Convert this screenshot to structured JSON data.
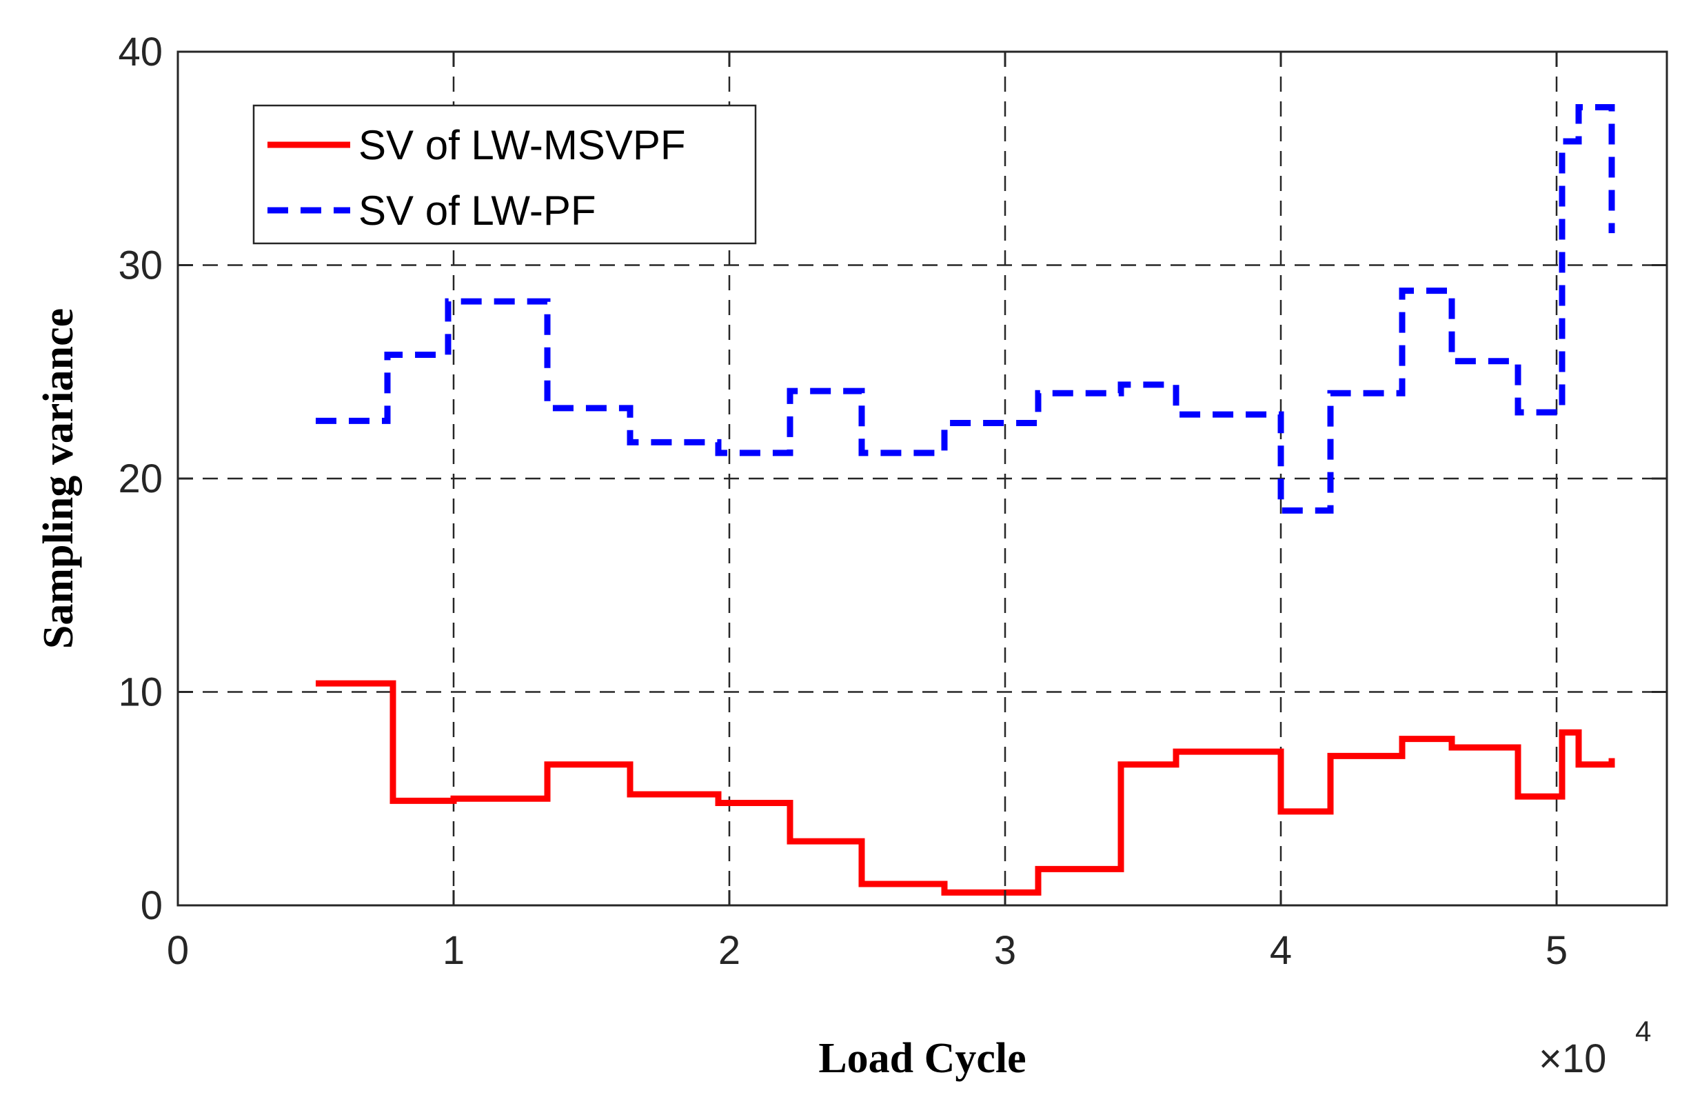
{
  "chart_data": {
    "type": "line",
    "title": "",
    "xlabel": "Load Cycle",
    "ylabel": "Sampling variance",
    "x_multiplier_label": "×10",
    "x_multiplier_exponent": "4",
    "xlim": [
      0,
      5.4
    ],
    "ylim": [
      0,
      40
    ],
    "x_ticks": [
      0,
      1,
      2,
      3,
      4,
      5
    ],
    "y_ticks": [
      0,
      10,
      20,
      30,
      40
    ],
    "x_tick_labels": [
      "0",
      "1",
      "2",
      "3",
      "4",
      "5"
    ],
    "y_tick_labels": [
      "0",
      "10",
      "20",
      "30",
      "40"
    ],
    "grid": true,
    "legend_position": "top-left",
    "series": [
      {
        "name": "SV of LW-MSVPF",
        "color": "#ff0000",
        "style": "solid",
        "step": true,
        "x": [
          0.5,
          0.78,
          1.0,
          1.34,
          1.64,
          1.96,
          2.22,
          2.48,
          2.78,
          3.12,
          3.42,
          3.62,
          4.0,
          4.18,
          4.44,
          4.62,
          4.86,
          5.02,
          5.08,
          5.2
        ],
        "y": [
          10.4,
          4.9,
          5.0,
          6.6,
          5.2,
          4.8,
          3.0,
          1.0,
          0.6,
          1.7,
          6.6,
          7.2,
          4.4,
          7.0,
          7.8,
          7.4,
          5.1,
          8.1,
          6.6,
          6.9
        ]
      },
      {
        "name": "SV of LW-PF",
        "color": "#0000ff",
        "style": "dashed",
        "step": true,
        "x": [
          0.5,
          0.76,
          0.98,
          1.34,
          1.64,
          1.96,
          2.22,
          2.48,
          2.78,
          3.12,
          3.42,
          3.62,
          4.0,
          4.18,
          4.44,
          4.62,
          4.86,
          5.02,
          5.08,
          5.2
        ],
        "y": [
          22.7,
          25.8,
          28.3,
          23.3,
          21.7,
          21.2,
          24.1,
          21.2,
          22.6,
          24.0,
          24.4,
          23.0,
          18.5,
          24.0,
          28.8,
          25.5,
          23.1,
          35.8,
          37.4,
          31.5
        ]
      }
    ]
  }
}
